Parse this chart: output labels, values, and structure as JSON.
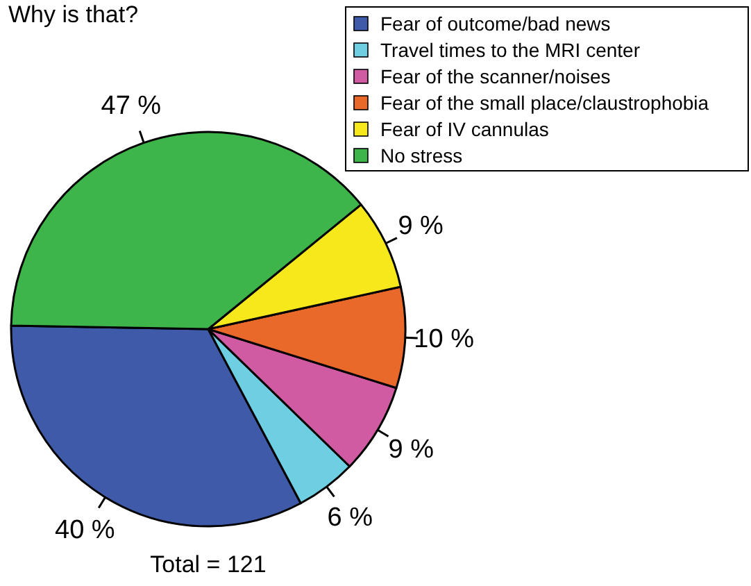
{
  "chart_data": {
    "type": "pie",
    "title": "Why is that?",
    "categories": [
      "Fear of outcome/bad news",
      "Travel times to the MRI center",
      "Fear of the scanner/noises",
      "Fear of the small place/claustrophobia",
      "Fear of IV cannulas",
      "No stress"
    ],
    "values": [
      40,
      6,
      9,
      10,
      9,
      47
    ],
    "colors": [
      "#3f5aa8",
      "#6fcfe2",
      "#d05ba3",
      "#e8692a",
      "#f6e81a",
      "#3db54a"
    ],
    "value_labels": [
      "40 %",
      "6 %",
      "9 %",
      "10 %",
      "9 %",
      "47 %"
    ],
    "legend": "top right",
    "annotations": [
      "Total = 121"
    ]
  }
}
